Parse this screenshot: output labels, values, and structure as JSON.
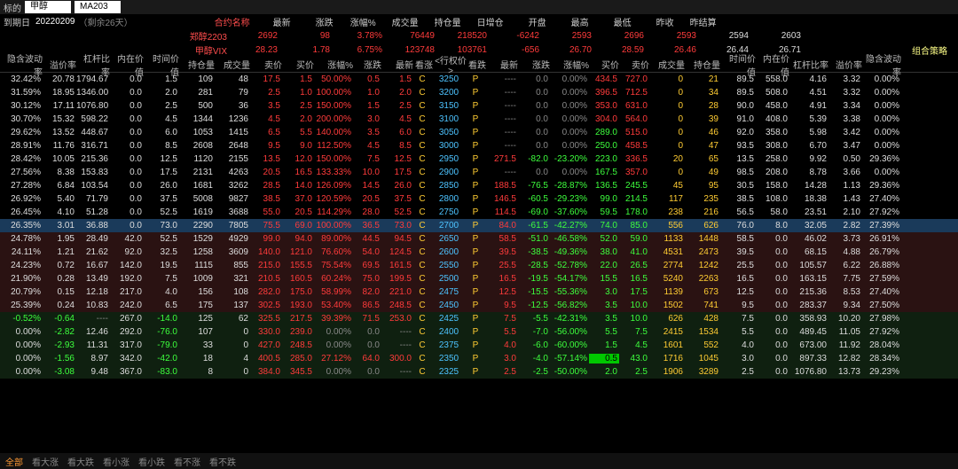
{
  "top": {
    "targetLbl": "标的",
    "target": "甲醇",
    "code": "MA203"
  },
  "info": {
    "maturityLbl": "到期日",
    "date": "20220209",
    "remain": "（剩余26天）",
    "contractLbl": "合约名称",
    "hdrs": [
      "最新",
      "涨跌",
      "涨幅%",
      "成交量",
      "持仓量",
      "日增仓",
      "开盘",
      "最高",
      "最低",
      "昨收",
      "昨结算"
    ]
  },
  "contracts": [
    {
      "name": "郑醇2203",
      "vals": [
        "2692",
        "98",
        "3.78%",
        "76449",
        "218520",
        "-6242",
        "2593",
        "2696",
        "2593",
        "2594",
        "2603"
      ],
      "cls": [
        "c-red",
        "c-red",
        "c-red",
        "c-red",
        "c-red",
        "c-red",
        "c-red",
        "c-red",
        "c-red",
        "c-wht",
        "c-wht"
      ]
    },
    {
      "name": "甲醇VIX",
      "vals": [
        "28.23",
        "1.78",
        "6.75%",
        "123748",
        "103761",
        "-656",
        "26.70",
        "28.59",
        "26.46",
        "26.44",
        "26.71"
      ],
      "cls": [
        "c-red",
        "c-red",
        "c-red",
        "c-red",
        "c-red",
        "c-red",
        "c-red",
        "c-red",
        "c-red",
        "c-wht",
        "c-wht"
      ]
    }
  ],
  "strategyBtn": "组合策略",
  "colHdrs": {
    "L": [
      "隐含波动率",
      "溢价率",
      "杠杆比率",
      "内在价值",
      "时间价值",
      "持仓量",
      "成交量",
      "卖价",
      "买价",
      "涨幅%",
      "涨跌",
      "最新"
    ],
    "M": [
      "看涨",
      "<行权价>",
      "看跌"
    ],
    "R": [
      "最新",
      "涨跌",
      "涨幅%",
      "买价",
      "卖价",
      "成交量",
      "持仓量",
      "时间价值",
      "内在价值",
      "杠杆比率",
      "溢价率",
      "隐含波动率"
    ]
  },
  "colW": {
    "L": [
      48,
      38,
      38,
      38,
      40,
      40,
      40,
      36,
      36,
      44,
      32,
      36
    ],
    "M": [
      22,
      38,
      22
    ],
    "R": [
      36,
      36,
      44,
      34,
      34,
      40,
      40,
      40,
      38,
      44,
      38,
      44
    ]
  },
  "rows": [
    {
      "L": [
        "32.42%",
        "20.78",
        "1794.67",
        "0.0",
        "1.5",
        "109",
        "48",
        "17.5",
        "1.5",
        "50.00%",
        "0.5",
        "1.5"
      ],
      "M": [
        "C",
        "3250",
        "P"
      ],
      "R": [
        "----",
        "0.0",
        "0.00%",
        "434.5",
        "727.0",
        "0",
        "21",
        "89.5",
        "558.0",
        "4.16",
        "3.32",
        "0.00%"
      ]
    },
    {
      "L": [
        "31.59%",
        "18.95",
        "1346.00",
        "0.0",
        "2.0",
        "281",
        "79",
        "2.5",
        "1.0",
        "100.00%",
        "1.0",
        "2.0"
      ],
      "M": [
        "C",
        "3200",
        "P"
      ],
      "R": [
        "----",
        "0.0",
        "0.00%",
        "396.5",
        "712.5",
        "0",
        "34",
        "89.5",
        "508.0",
        "4.51",
        "3.32",
        "0.00%"
      ]
    },
    {
      "L": [
        "30.12%",
        "17.11",
        "1076.80",
        "0.0",
        "2.5",
        "500",
        "36",
        "3.5",
        "2.5",
        "150.00%",
        "1.5",
        "2.5"
      ],
      "M": [
        "C",
        "3150",
        "P"
      ],
      "R": [
        "----",
        "0.0",
        "0.00%",
        "353.0",
        "631.0",
        "0",
        "28",
        "90.0",
        "458.0",
        "4.91",
        "3.34",
        "0.00%"
      ]
    },
    {
      "L": [
        "30.70%",
        "15.32",
        "598.22",
        "0.0",
        "4.5",
        "1344",
        "1236",
        "4.5",
        "2.0",
        "200.00%",
        "3.0",
        "4.5"
      ],
      "M": [
        "C",
        "3100",
        "P"
      ],
      "R": [
        "----",
        "0.0",
        "0.00%",
        "304.0",
        "564.0",
        "0",
        "39",
        "91.0",
        "408.0",
        "5.39",
        "3.38",
        "0.00%"
      ]
    },
    {
      "L": [
        "29.62%",
        "13.52",
        "448.67",
        "0.0",
        "6.0",
        "1053",
        "1415",
        "6.5",
        "5.5",
        "140.00%",
        "3.5",
        "6.0"
      ],
      "M": [
        "C",
        "3050",
        "P"
      ],
      "R": [
        "----",
        "0.0",
        "0.00%",
        "289.0",
        "515.0",
        "0",
        "46",
        "92.0",
        "358.0",
        "5.98",
        "3.42",
        "0.00%"
      ]
    },
    {
      "L": [
        "28.91%",
        "11.76",
        "316.71",
        "0.0",
        "8.5",
        "2608",
        "2648",
        "9.5",
        "9.0",
        "112.50%",
        "4.5",
        "8.5"
      ],
      "M": [
        "C",
        "3000",
        "P"
      ],
      "R": [
        "----",
        "0.0",
        "0.00%",
        "250.0",
        "458.5",
        "0",
        "47",
        "93.5",
        "308.0",
        "6.70",
        "3.47",
        "0.00%"
      ]
    },
    {
      "L": [
        "28.42%",
        "10.05",
        "215.36",
        "0.0",
        "12.5",
        "1120",
        "2155",
        "13.5",
        "12.0",
        "150.00%",
        "7.5",
        "12.5"
      ],
      "M": [
        "C",
        "2950",
        "P"
      ],
      "R": [
        "271.5",
        "-82.0",
        "-23.20%",
        "223.0",
        "336.5",
        "20",
        "65",
        "13.5",
        "258.0",
        "9.92",
        "0.50",
        "29.36%"
      ]
    },
    {
      "L": [
        "27.56%",
        "8.38",
        "153.83",
        "0.0",
        "17.5",
        "2131",
        "4263",
        "20.5",
        "16.5",
        "133.33%",
        "10.0",
        "17.5"
      ],
      "M": [
        "C",
        "2900",
        "P"
      ],
      "R": [
        "----",
        "0.0",
        "0.00%",
        "167.5",
        "357.0",
        "0",
        "49",
        "98.5",
        "208.0",
        "8.78",
        "3.66",
        "0.00%"
      ]
    },
    {
      "L": [
        "27.28%",
        "6.84",
        "103.54",
        "0.0",
        "26.0",
        "1681",
        "3262",
        "28.5",
        "14.0",
        "126.09%",
        "14.5",
        "26.0"
      ],
      "M": [
        "C",
        "2850",
        "P"
      ],
      "R": [
        "188.5",
        "-76.5",
        "-28.87%",
        "136.5",
        "245.5",
        "45",
        "95",
        "30.5",
        "158.0",
        "14.28",
        "1.13",
        "29.36%"
      ]
    },
    {
      "L": [
        "26.92%",
        "5.40",
        "71.79",
        "0.0",
        "37.5",
        "5008",
        "9827",
        "38.5",
        "37.0",
        "120.59%",
        "20.5",
        "37.5"
      ],
      "M": [
        "C",
        "2800",
        "P"
      ],
      "R": [
        "146.5",
        "-60.5",
        "-29.23%",
        "99.0",
        "214.5",
        "117",
        "235",
        "38.5",
        "108.0",
        "18.38",
        "1.43",
        "27.40%"
      ]
    },
    {
      "L": [
        "26.45%",
        "4.10",
        "51.28",
        "0.0",
        "52.5",
        "1619",
        "3688",
        "55.0",
        "20.5",
        "114.29%",
        "28.0",
        "52.5"
      ],
      "M": [
        "C",
        "2750",
        "P"
      ],
      "R": [
        "114.5",
        "-69.0",
        "-37.60%",
        "59.5",
        "178.0",
        "238",
        "216",
        "56.5",
        "58.0",
        "23.51",
        "2.10",
        "27.92%"
      ]
    },
    {
      "L": [
        "26.35%",
        "3.01",
        "36.88",
        "0.0",
        "73.0",
        "2290",
        "7805",
        "75.5",
        "69.0",
        "100.00%",
        "36.5",
        "73.0"
      ],
      "M": [
        "C",
        "2700",
        "P"
      ],
      "R": [
        "84.0",
        "-61.5",
        "-42.27%",
        "74.0",
        "85.0",
        "556",
        "626",
        "76.0",
        "8.0",
        "32.05",
        "2.82",
        "27.39%"
      ],
      "rowCls": "sel-row"
    },
    {
      "L": [
        "24.78%",
        "1.95",
        "28.49",
        "42.0",
        "52.5",
        "1529",
        "4929",
        "99.0",
        "94.0",
        "89.00%",
        "44.5",
        "94.5"
      ],
      "M": [
        "C",
        "2650",
        "P"
      ],
      "R": [
        "58.5",
        "-51.0",
        "-46.58%",
        "52.0",
        "59.0",
        "1133",
        "1448",
        "58.5",
        "0.0",
        "46.02",
        "3.73",
        "26.91%"
      ],
      "rowCls": "hl-red"
    },
    {
      "L": [
        "24.11%",
        "1.21",
        "21.62",
        "92.0",
        "32.5",
        "1258",
        "3609",
        "140.0",
        "121.0",
        "76.60%",
        "54.0",
        "124.5"
      ],
      "M": [
        "C",
        "2600",
        "P"
      ],
      "R": [
        "39.5",
        "-38.5",
        "-49.36%",
        "38.0",
        "41.0",
        "4531",
        "2473",
        "39.5",
        "0.0",
        "68.15",
        "4.88",
        "26.79%"
      ],
      "rowCls": "hl-red"
    },
    {
      "L": [
        "24.23%",
        "0.72",
        "16.67",
        "142.0",
        "19.5",
        "1115",
        "855",
        "215.0",
        "155.5",
        "75.54%",
        "69.5",
        "161.5"
      ],
      "M": [
        "C",
        "2550",
        "P"
      ],
      "R": [
        "25.5",
        "-28.5",
        "-52.78%",
        "22.0",
        "26.5",
        "2774",
        "1242",
        "25.5",
        "0.0",
        "105.57",
        "6.22",
        "26.88%"
      ],
      "rowCls": "hl-red"
    },
    {
      "L": [
        "21.90%",
        "0.28",
        "13.49",
        "192.0",
        "7.5",
        "1009",
        "321",
        "210.5",
        "160.5",
        "60.24%",
        "75.0",
        "199.5"
      ],
      "M": [
        "C",
        "2500",
        "P"
      ],
      "R": [
        "16.5",
        "-19.5",
        "-54.17%",
        "15.5",
        "16.5",
        "5240",
        "2263",
        "16.5",
        "0.0",
        "163.15",
        "7.75",
        "27.59%"
      ],
      "rowCls": "hl-red"
    },
    {
      "L": [
        "20.79%",
        "0.15",
        "12.18",
        "217.0",
        "4.0",
        "156",
        "108",
        "282.0",
        "175.0",
        "58.99%",
        "82.0",
        "221.0"
      ],
      "M": [
        "C",
        "2475",
        "P"
      ],
      "R": [
        "12.5",
        "-15.5",
        "-55.36%",
        "3.0",
        "17.5",
        "1139",
        "673",
        "12.5",
        "0.0",
        "215.36",
        "8.53",
        "27.40%"
      ],
      "rowCls": "hl-red"
    },
    {
      "L": [
        "25.39%",
        "0.24",
        "10.83",
        "242.0",
        "6.5",
        "175",
        "137",
        "302.5",
        "193.0",
        "53.40%",
        "86.5",
        "248.5"
      ],
      "M": [
        "C",
        "2450",
        "P"
      ],
      "R": [
        "9.5",
        "-12.5",
        "-56.82%",
        "3.5",
        "10.0",
        "1502",
        "741",
        "9.5",
        "0.0",
        "283.37",
        "9.34",
        "27.50%"
      ],
      "rowCls": "hl-red"
    },
    {
      "L": [
        "-0.52%",
        "-0.64",
        "----",
        "267.0",
        "-14.0",
        "125",
        "62",
        "325.5",
        "217.5",
        "39.39%",
        "71.5",
        "253.0"
      ],
      "M": [
        "C",
        "2425",
        "P"
      ],
      "R": [
        "7.5",
        "-5.5",
        "-42.31%",
        "3.5",
        "10.0",
        "626",
        "428",
        "7.5",
        "0.0",
        "358.93",
        "10.20",
        "27.98%"
      ],
      "rowCls": "hl-gr"
    },
    {
      "L": [
        "0.00%",
        "-2.82",
        "12.46",
        "292.0",
        "-76.0",
        "107",
        "0",
        "330.0",
        "239.0",
        "0.00%",
        "0.0",
        "----"
      ],
      "M": [
        "C",
        "2400",
        "P"
      ],
      "R": [
        "5.5",
        "-7.0",
        "-56.00%",
        "5.5",
        "7.5",
        "2415",
        "1534",
        "5.5",
        "0.0",
        "489.45",
        "11.05",
        "27.92%"
      ],
      "rowCls": "hl-gr"
    },
    {
      "L": [
        "0.00%",
        "-2.93",
        "11.31",
        "317.0",
        "-79.0",
        "33",
        "0",
        "427.0",
        "248.5",
        "0.00%",
        "0.0",
        "----"
      ],
      "M": [
        "C",
        "2375",
        "P"
      ],
      "R": [
        "4.0",
        "-6.0",
        "-60.00%",
        "1.5",
        "4.5",
        "1601",
        "552",
        "4.0",
        "0.0",
        "673.00",
        "11.92",
        "28.04%"
      ],
      "rowCls": "hl-gr"
    },
    {
      "L": [
        "0.00%",
        "-1.56",
        "8.97",
        "342.0",
        "-42.0",
        "18",
        "4",
        "400.5",
        "285.0",
        "27.12%",
        "64.0",
        "300.0"
      ],
      "M": [
        "C",
        "2350",
        "P"
      ],
      "R": [
        "3.0",
        "-4.0",
        "-57.14%",
        "0.5",
        "43.0",
        "1716",
        "1045",
        "3.0",
        "0.0",
        "897.33",
        "12.82",
        "28.34%"
      ],
      "rowCls": "hl-gr",
      "buyBg": true
    },
    {
      "L": [
        "0.00%",
        "-3.08",
        "9.48",
        "367.0",
        "-83.0",
        "8",
        "0",
        "384.0",
        "345.5",
        "0.00%",
        "0.0",
        "----"
      ],
      "M": [
        "C",
        "2325",
        "P"
      ],
      "R": [
        "2.5",
        "-2.5",
        "-50.00%",
        "2.0",
        "2.5",
        "1906",
        "3289",
        "2.5",
        "0.0",
        "1076.80",
        "13.73",
        "29.23%"
      ],
      "rowCls": "hl-gr"
    }
  ],
  "bottom": [
    "全部",
    "看大涨",
    "看大跌",
    "看小涨",
    "看小跌",
    "看不涨",
    "看不跌"
  ]
}
